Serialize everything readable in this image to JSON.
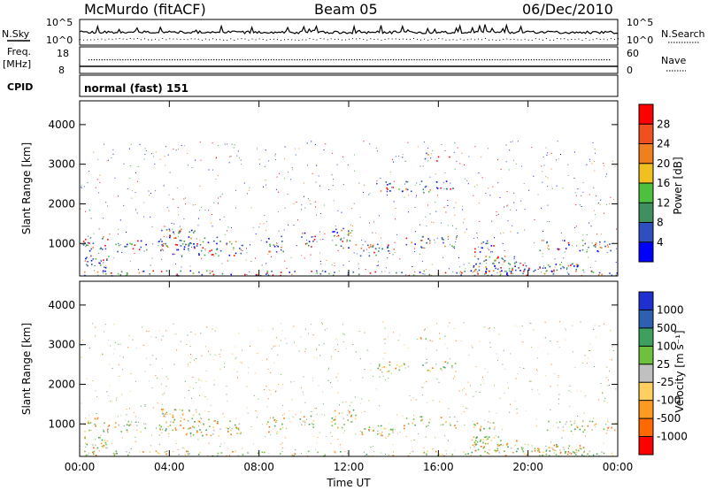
{
  "header": {
    "station": "McMurdo (fitACF)",
    "beam": "Beam 05",
    "date": "06/Dec/2010"
  },
  "strip_panels": {
    "nsky_label": "N.Sky",
    "nsearch_label": "N.Search",
    "noise_ticks_left": [
      "10^5",
      "10^0"
    ],
    "noise_ticks_right": [
      "10^5",
      "10^0"
    ],
    "freq_label": "Freq.",
    "freq_unit": "[MHz]",
    "freq_ticks": [
      "18",
      "8"
    ],
    "nave_label": "Nave",
    "nave_ticks": [
      "60",
      "0"
    ],
    "cpid_label": "CPID",
    "cpid_value": "normal (fast) 151"
  },
  "colors": {
    "power": [
      "#0000ff",
      "#2f4fbf",
      "#3f8f5f",
      "#4fbf3f",
      "#f0c020",
      "#f07f20",
      "#f05020",
      "#ff0000"
    ],
    "velocity": [
      "#ff0000",
      "#ff6a00",
      "#ff9a20",
      "#ffd060",
      "#c0c0c0",
      "#70c040",
      "#3f9f5f",
      "#2f5faf",
      "#2030d0"
    ]
  },
  "chart_data": [
    {
      "type": "heatmap",
      "name": "power",
      "xlabel": "Time UT",
      "ylabel": "Slant Range [km]",
      "x_ticks": [
        "00:00",
        "04:00",
        "08:00",
        "12:00",
        "16:00",
        "20:00",
        "00:00"
      ],
      "y_ticks": [
        1000,
        2000,
        3000,
        4000
      ],
      "ylim": [
        180,
        4600
      ],
      "xlim_hours": [
        0,
        24
      ],
      "colorbar": {
        "label": "Power [dB]",
        "ticks": [
          "4",
          "8",
          "12",
          "16",
          "20",
          "24",
          "28"
        ]
      }
    },
    {
      "type": "heatmap",
      "name": "velocity",
      "xlabel": "Time UT",
      "ylabel": "Slant Range [km]",
      "x_ticks": [
        "00:00",
        "04:00",
        "08:00",
        "12:00",
        "16:00",
        "20:00",
        "00:00"
      ],
      "y_ticks": [
        1000,
        2000,
        3000,
        4000
      ],
      "ylim": [
        180,
        4600
      ],
      "xlim_hours": [
        0,
        24
      ],
      "colorbar": {
        "label": "Velocity [m s⁻¹]",
        "ticks": [
          "1000",
          "500",
          "100",
          "25",
          "-25",
          "-100",
          "-500",
          "-1000"
        ]
      }
    }
  ]
}
